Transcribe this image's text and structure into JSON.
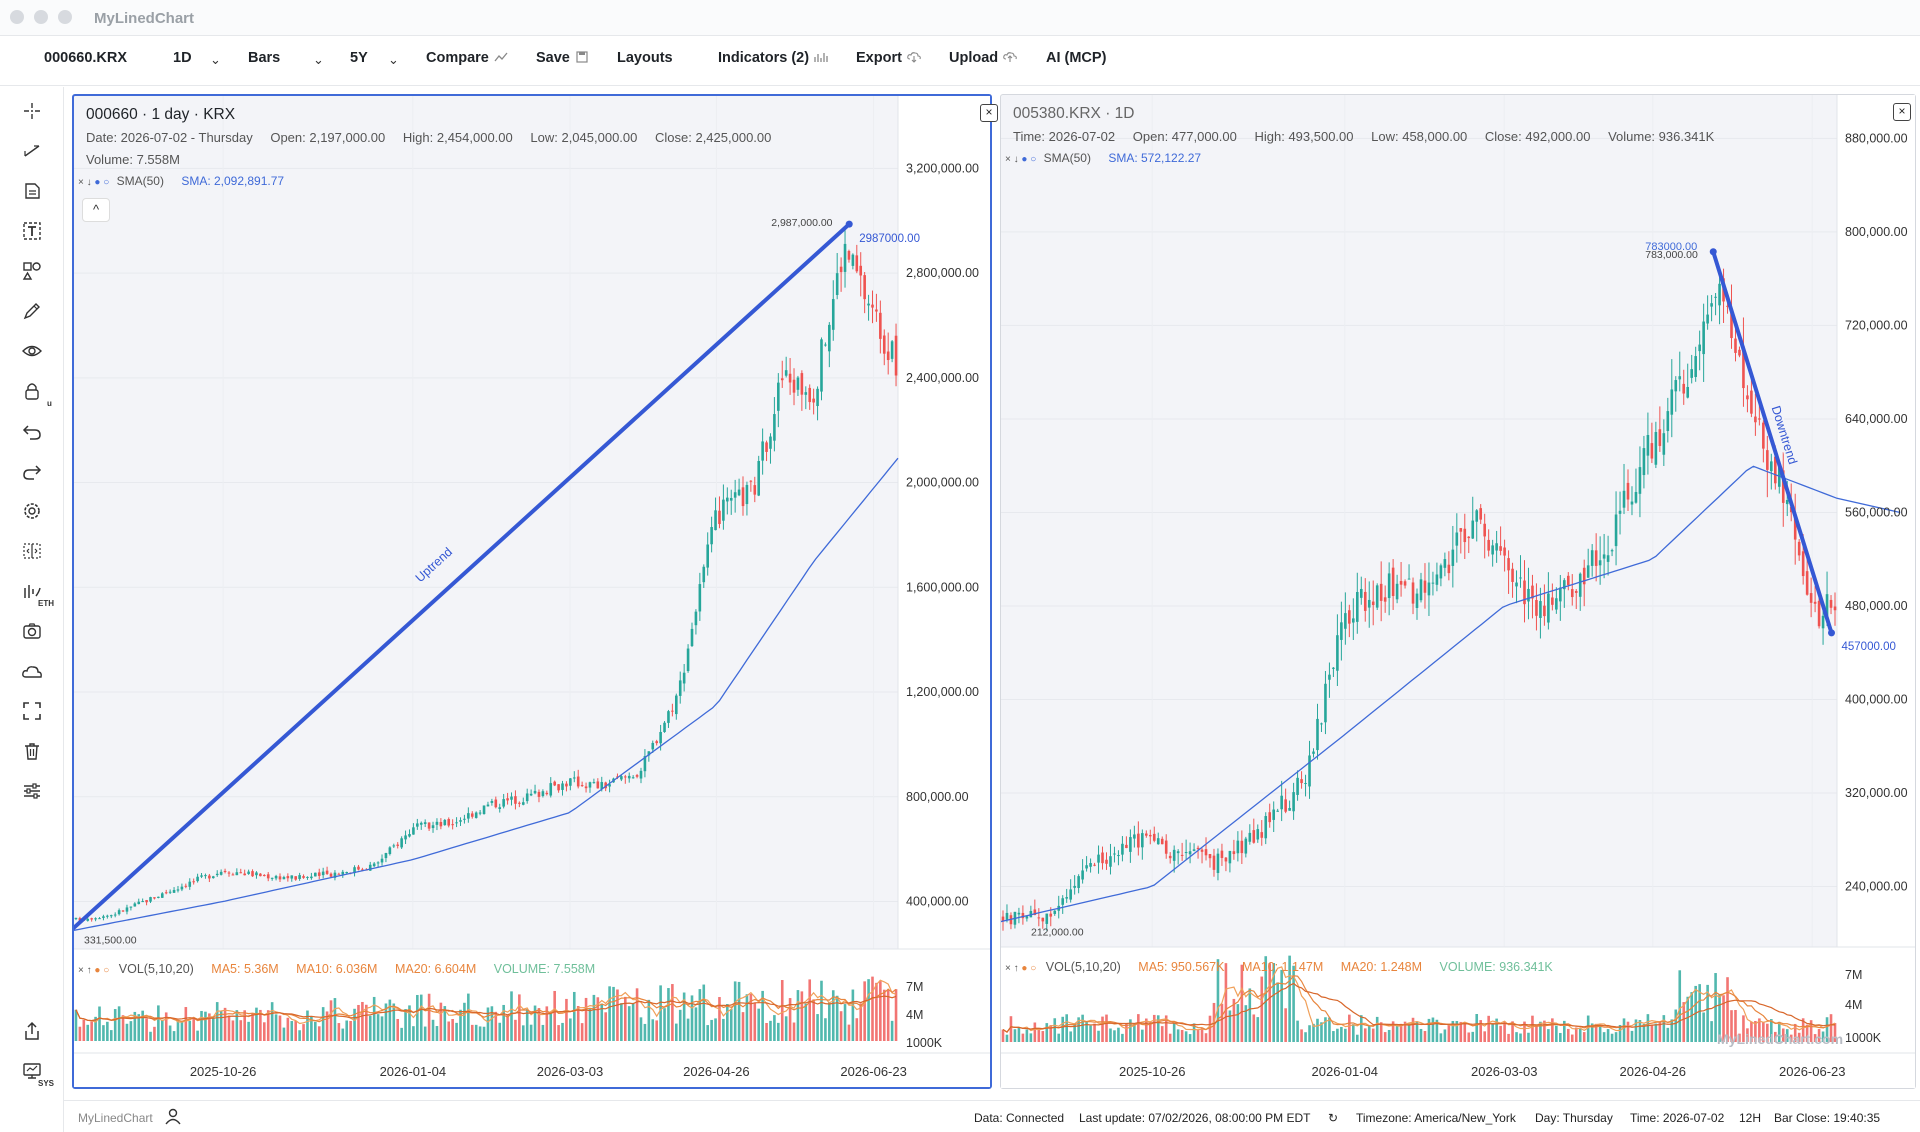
{
  "app": {
    "title": "MyLinedChart"
  },
  "toolbar": {
    "symbol": "000660.KRX",
    "interval": "1D",
    "chart_type": "Bars",
    "range": "5Y",
    "compare": "Compare",
    "save": "Save",
    "layouts": "Layouts",
    "indicators": "Indicators (2)",
    "export": "Export",
    "upload": "Upload",
    "ai": "AI (MCP)"
  },
  "left_tools": {
    "lock_badge": "u",
    "eth_badge": "ETH",
    "sys_badge": "SYS"
  },
  "left_pane": {
    "title": "000660 · 1 day · KRX",
    "ohlc": {
      "date": "Date: 2026-07-02 - Thursday",
      "open": "Open: 2,197,000.00",
      "high": "High: 2,454,000.00",
      "low": "Low: 2,045,000.00",
      "close": "Close: 2,425,000.00"
    },
    "volume": "Volume: 7.558M",
    "sma_name": "SMA(50)",
    "sma_value": "SMA: 2,092,891.77",
    "collapse": "^",
    "close": "×",
    "price_axis": [
      "3,200,000.00",
      "2,800,000.00",
      "2,400,000.00",
      "2,000,000.00",
      "1,600,000.00",
      "1,200,000.00",
      "800,000.00",
      "400,000.00"
    ],
    "annotations": {
      "high_label": "2,987,000.00",
      "trend_end_label": "2987000.00",
      "low_label": "331,500.00",
      "trend_text": "Uptrend"
    },
    "vol_legend": {
      "name": "VOL(5,10,20)",
      "ma5": "MA5: 5.36M",
      "ma10": "MA10: 6.036M",
      "ma20": "MA20: 6.604M",
      "volume": "VOLUME: 7.558M"
    },
    "vol_axis": [
      "7M",
      "4M",
      "1000K"
    ],
    "time_axis": [
      "2025-10-26",
      "2026-01-04",
      "2026-03-03",
      "2026-04-26",
      "2026-06-23"
    ]
  },
  "right_pane": {
    "title": "005380.KRX · 1D",
    "ohlc": {
      "time": "Time: 2026-07-02",
      "open": "Open: 477,000.00",
      "high": "High: 493,500.00",
      "low": "Low: 458,000.00",
      "close": "Close: 492,000.00",
      "volume": "Volume: 936.341K"
    },
    "sma_name": "SMA(50)",
    "sma_value": "SMA: 572,122.27",
    "close": "×",
    "price_axis": [
      "880,000.00",
      "800,000.00",
      "720,000.00",
      "640,000.00",
      "560,000.00",
      "480,000.00",
      "400,000.00",
      "320,000.00",
      "240,000.00"
    ],
    "annotations": {
      "high_label": "783000.00",
      "high_label2": "783,000.00",
      "trend_end_label": "457000.00",
      "low_label": "212,000.00",
      "trend_text": "Downtrend"
    },
    "vol_legend": {
      "name": "VOL(5,10,20)",
      "ma5": "MA5: 950.567K",
      "ma10": "MA10: 1.147M",
      "ma20": "MA20: 1.248M",
      "volume": "VOLUME: 936.341K"
    },
    "vol_axis": [
      "7M",
      "4M",
      "1000K"
    ],
    "watermark": "MyLinedChart.com",
    "time_axis": [
      "2025-10-26",
      "2026-01-04",
      "2026-03-03",
      "2026-04-26",
      "2026-06-23"
    ]
  },
  "status": {
    "brand": "MyLinedChart",
    "data": "Data: Connected",
    "last_update": "Last update: 07/02/2026, 08:00:00 PM EDT",
    "timezone": "Timezone: America/New_York",
    "day": "Day: Thursday",
    "time": "Time: 2026-07-02",
    "hour_format": "12H",
    "bar_close": "Bar Close: 19:40:35"
  },
  "colors": {
    "up": "#26a69a",
    "down": "#ef5350",
    "sma": "#3f6ad8",
    "trend": "#3558d4",
    "ma_orange": "#e8853d"
  },
  "chart_data": [
    {
      "type": "candlestick",
      "title": "000660 · 1 day · KRX",
      "x_range": [
        "2025-09-01",
        "2026-07-02"
      ],
      "ylim": [
        230000,
        3400000
      ],
      "points_close": [
        [
          "2025-09-01",
          330000
        ],
        [
          "2025-09-15",
          350000
        ],
        [
          "2025-09-29",
          410000
        ],
        [
          "2025-10-13",
          470000
        ],
        [
          "2025-10-26",
          520000
        ],
        [
          "2025-11-09",
          500000
        ],
        [
          "2025-11-23",
          490000
        ],
        [
          "2025-12-07",
          510000
        ],
        [
          "2025-12-21",
          540000
        ],
        [
          "2026-01-04",
          680000
        ],
        [
          "2026-01-18",
          700000
        ],
        [
          "2026-02-01",
          770000
        ],
        [
          "2026-02-15",
          800000
        ],
        [
          "2026-03-03",
          860000
        ],
        [
          "2026-03-15",
          840000
        ],
        [
          "2026-03-29",
          900000
        ],
        [
          "2026-04-05",
          1050000
        ],
        [
          "2026-04-12",
          1200000
        ],
        [
          "2026-04-19",
          1550000
        ],
        [
          "2026-04-26",
          1870000
        ],
        [
          "2026-05-10",
          1980000
        ],
        [
          "2026-05-20",
          2400000
        ],
        [
          "2026-06-01",
          2350000
        ],
        [
          "2026-06-12",
          2900000
        ],
        [
          "2026-06-23",
          2650000
        ],
        [
          "2026-07-02",
          2425000
        ]
      ],
      "sma50": [
        [
          "2025-09-01",
          290000
        ],
        [
          "2025-10-26",
          400000
        ],
        [
          "2026-01-04",
          560000
        ],
        [
          "2026-03-03",
          740000
        ],
        [
          "2026-04-26",
          1150000
        ],
        [
          "2026-06-01",
          1700000
        ],
        [
          "2026-07-02",
          2092891.77
        ]
      ],
      "trendline": {
        "label": "Uptrend",
        "from": [
          "2025-09-01",
          300000
        ],
        "to": [
          "2026-06-14",
          2987000
        ]
      },
      "volume": {
        "axis": [
          "7M",
          "4M",
          "1000K"
        ],
        "last": "7.558M"
      }
    },
    {
      "type": "candlestick",
      "title": "005380.KRX · 1D",
      "x_range": [
        "2025-09-01",
        "2026-07-02"
      ],
      "ylim": [
        190000,
        900000
      ],
      "points_close": [
        [
          "2025-09-01",
          212000
        ],
        [
          "2025-09-20",
          215000
        ],
        [
          "2025-10-05",
          260000
        ],
        [
          "2025-10-20",
          280000
        ],
        [
          "2025-11-05",
          270000
        ],
        [
          "2025-11-20",
          260000
        ],
        [
          "2025-12-05",
          290000
        ],
        [
          "2025-12-20",
          330000
        ],
        [
          "2026-01-04",
          470000
        ],
        [
          "2026-01-20",
          500000
        ],
        [
          "2026-02-05",
          490000
        ],
        [
          "2026-02-20",
          560000
        ],
        [
          "2026-03-03",
          520000
        ],
        [
          "2026-03-15",
          480000
        ],
        [
          "2026-04-01",
          500000
        ],
        [
          "2026-04-15",
          560000
        ],
        [
          "2026-04-26",
          620000
        ],
        [
          "2026-05-10",
          680000
        ],
        [
          "2026-05-20",
          760000
        ],
        [
          "2026-06-01",
          640000
        ],
        [
          "2026-06-10",
          600000
        ],
        [
          "2026-06-23",
          470000
        ],
        [
          "2026-07-02",
          492000
        ]
      ],
      "sma50": [
        [
          "2025-09-01",
          210000
        ],
        [
          "2025-10-26",
          240000
        ],
        [
          "2026-01-04",
          370000
        ],
        [
          "2026-03-03",
          480000
        ],
        [
          "2026-04-26",
          520000
        ],
        [
          "2026-06-01",
          600000
        ],
        [
          "2026-07-02",
          572122.27
        ]
      ],
      "trendline": {
        "label": "Downtrend",
        "from": [
          "2026-05-18",
          783000
        ],
        "to": [
          "2026-06-30",
          457000
        ]
      },
      "volume": {
        "axis": [
          "7M",
          "4M",
          "1000K"
        ],
        "last": "936.341K"
      }
    }
  ]
}
